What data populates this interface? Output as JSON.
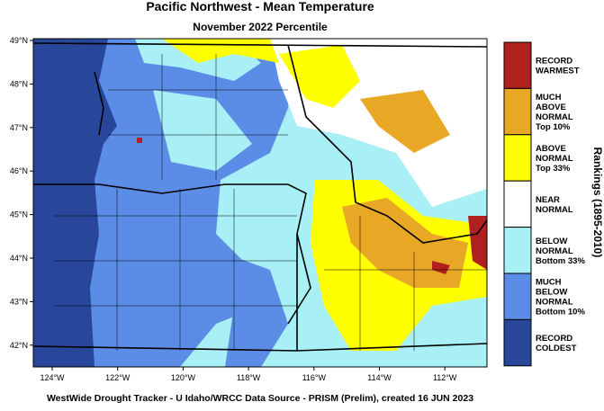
{
  "header": {
    "title": "Pacific Northwest - Mean Temperature",
    "subtitle": "November 2022 Percentile"
  },
  "map": {
    "lat_labels": [
      "49°N",
      "48°N",
      "47°N",
      "46°N",
      "45°N",
      "44°N",
      "43°N",
      "42°N"
    ],
    "lon_labels": [
      "124°W",
      "122°W",
      "120°W",
      "118°W",
      "116°W",
      "114°W",
      "112°W"
    ]
  },
  "legend": {
    "title": "Rankings (1895-2010)",
    "items": [
      {
        "lines": [
          "RECORD",
          "WARMEST"
        ],
        "color": "#b0201e"
      },
      {
        "lines": [
          "MUCH",
          "ABOVE",
          "NORMAL",
          "Top 10%"
        ],
        "color": "#e9a726"
      },
      {
        "lines": [
          "ABOVE",
          "NORMAL",
          "Top 33%"
        ],
        "color": "#ffff00"
      },
      {
        "lines": [
          "NEAR",
          "NORMAL"
        ],
        "color": "#ffffff"
      },
      {
        "lines": [
          "BELOW",
          "NORMAL",
          "Bottom 33%"
        ],
        "color": "#a8f0f6"
      },
      {
        "lines": [
          "MUCH",
          "BELOW",
          "NORMAL",
          "Bottom 10%"
        ],
        "color": "#5b8de6"
      },
      {
        "lines": [
          "RECORD",
          "COLDEST"
        ],
        "color": "#29479a"
      }
    ]
  },
  "footer": "WestWide Drought Tracker - U Idaho/WRCC  Data Source - PRISM (Prelim), created 16 JUN 2023"
}
